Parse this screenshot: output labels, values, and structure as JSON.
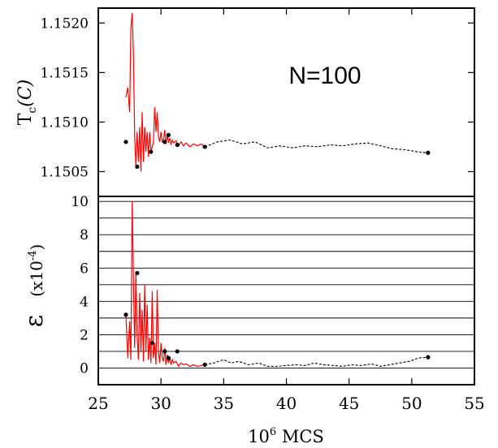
{
  "chart_data": [
    {
      "type": "line",
      "panel": "top",
      "ylabel_main": "T",
      "ylabel_sub": "c",
      "ylabel_paren": "(C)",
      "annotation": "N=100",
      "xlim": [
        25,
        55
      ],
      "ylim": [
        1.15025,
        1.15215
      ],
      "yticks": [
        1.1505,
        1.151,
        1.1515,
        1.152
      ],
      "ytick_labels": [
        "1.1505",
        "1.1510",
        "1.1515",
        "1.1520"
      ],
      "grid": false,
      "series": [
        {
          "style": "red-solid",
          "color": "#ff0000",
          "x": [
            27.2,
            27.35,
            27.5,
            27.6,
            27.7,
            27.8,
            27.9,
            28.0,
            28.1,
            28.2,
            28.3,
            28.4,
            28.5,
            28.6,
            28.7,
            28.8,
            28.9,
            29.0,
            29.1,
            29.2,
            29.3,
            29.4,
            29.5,
            29.6,
            29.7,
            29.8,
            29.9,
            30.0,
            30.1,
            30.2,
            30.3,
            30.4,
            30.5,
            30.6,
            30.7,
            30.8,
            30.9,
            31.0,
            31.2,
            31.4,
            31.6,
            31.8,
            32.0,
            32.3,
            32.6,
            32.9,
            33.2,
            33.5
          ],
          "y": [
            1.15125,
            1.15135,
            1.1511,
            1.15195,
            1.1521,
            1.1517,
            1.15085,
            1.15055,
            1.1509,
            1.1506,
            1.15095,
            1.1505,
            1.1511,
            1.1506,
            1.15095,
            1.1507,
            1.1509,
            1.15065,
            1.1509,
            1.1507,
            1.15075,
            1.1508,
            1.15115,
            1.1509,
            1.1511,
            1.15085,
            1.1508,
            1.1509,
            1.1508,
            1.15082,
            1.15092,
            1.15078,
            1.15087,
            1.15079,
            1.15084,
            1.15077,
            1.15082,
            1.15079,
            1.15081,
            1.15076,
            1.1508,
            1.15076,
            1.15079,
            1.15075,
            1.15078,
            1.15076,
            1.15078,
            1.15075
          ]
        },
        {
          "style": "black-dashed",
          "color": "#000000",
          "x": [
            33.5,
            34.5,
            35.5,
            36.5,
            37.5,
            38.5,
            39.5,
            40.5,
            41.5,
            42.5,
            43.5,
            44.5,
            45.5,
            46.5,
            47.5,
            48.5,
            49.5,
            50.5,
            51.3
          ],
          "y": [
            1.15075,
            1.1508,
            1.15082,
            1.15078,
            1.1508,
            1.15074,
            1.15076,
            1.15074,
            1.15076,
            1.15075,
            1.15077,
            1.15076,
            1.15078,
            1.15079,
            1.15076,
            1.15073,
            1.15072,
            1.1507,
            1.15069
          ]
        },
        {
          "style": "markers",
          "color": "#000000",
          "x": [
            27.2,
            28.1,
            29.2,
            30.3,
            30.6,
            31.3,
            33.5,
            51.3
          ],
          "y": [
            1.1508,
            1.15055,
            1.1507,
            1.1508,
            1.15087,
            1.15077,
            1.15075,
            1.15069
          ]
        }
      ]
    },
    {
      "type": "line",
      "panel": "bottom",
      "ylabel_symbol": "ε",
      "ylabel_units": "(x10",
      "ylabel_exp": "-4",
      "ylabel_close": ")",
      "xlabel_base": "10",
      "xlabel_exp": "6",
      "xlabel_units": " MCS",
      "xlim": [
        25,
        55
      ],
      "ylim": [
        -1.0,
        10.3
      ],
      "xticks": [
        25,
        30,
        35,
        40,
        45,
        50,
        55
      ],
      "xtick_labels": [
        "25",
        "30",
        "35",
        "40",
        "45",
        "50",
        "55"
      ],
      "yticks": [
        0,
        2,
        4,
        6,
        8,
        10
      ],
      "ytick_labels": [
        "0",
        "2",
        "4",
        "6",
        "8",
        "10"
      ],
      "grid_lines_y": [
        0,
        1,
        2,
        3,
        4,
        5,
        6,
        7,
        8,
        9,
        10
      ],
      "grid": true,
      "series": [
        {
          "style": "red-solid",
          "color": "#ff0000",
          "x": [
            27.2,
            27.35,
            27.5,
            27.6,
            27.7,
            27.8,
            27.9,
            28.0,
            28.1,
            28.2,
            28.3,
            28.4,
            28.5,
            28.6,
            28.7,
            28.8,
            28.9,
            29.0,
            29.1,
            29.2,
            29.3,
            29.4,
            29.5,
            29.6,
            29.7,
            29.8,
            29.9,
            30.0,
            30.1,
            30.2,
            30.3,
            30.4,
            30.5,
            30.6,
            30.7,
            30.8,
            30.9,
            31.0,
            31.2,
            31.4,
            31.6,
            31.8,
            32.0,
            32.3,
            32.6,
            32.9,
            33.2,
            33.5
          ],
          "y": [
            3.2,
            0.6,
            2.8,
            0.5,
            10.0,
            5.5,
            1.2,
            5.7,
            2.0,
            0.5,
            4.5,
            1.0,
            3.5,
            0.4,
            5.0,
            1.0,
            3.8,
            0.5,
            1.8,
            0.3,
            4.6,
            0.6,
            1.5,
            0.2,
            4.7,
            1.0,
            0.3,
            1.5,
            0.6,
            0.4,
            1.2,
            0.2,
            0.8,
            0.3,
            0.6,
            0.2,
            0.5,
            0.3,
            0.4,
            0.1,
            0.3,
            0.2,
            0.25,
            0.1,
            0.2,
            0.1,
            0.15,
            0.2
          ]
        },
        {
          "style": "black-dashed",
          "color": "#000000",
          "x": [
            33.5,
            34.2,
            35.0,
            35.6,
            36.2,
            37.0,
            37.8,
            38.5,
            39.2,
            40.0,
            40.8,
            41.5,
            42.2,
            43.0,
            43.8,
            44.5,
            45.2,
            46.0,
            46.8,
            47.5,
            48.2,
            49.0,
            49.8,
            50.5,
            51.3
          ],
          "y": [
            0.2,
            0.3,
            0.5,
            0.3,
            0.4,
            0.2,
            0.3,
            0.1,
            0.1,
            0.15,
            0.2,
            0.15,
            0.3,
            0.2,
            0.15,
            0.1,
            0.2,
            0.15,
            0.25,
            0.1,
            0.2,
            0.3,
            0.4,
            0.6,
            0.65
          ]
        },
        {
          "style": "markers",
          "color": "#000000",
          "x": [
            27.2,
            28.1,
            29.3,
            30.3,
            30.6,
            31.3,
            33.5,
            51.3
          ],
          "y": [
            3.2,
            5.7,
            1.5,
            1.0,
            0.6,
            1.0,
            0.2,
            0.65
          ]
        }
      ]
    }
  ]
}
